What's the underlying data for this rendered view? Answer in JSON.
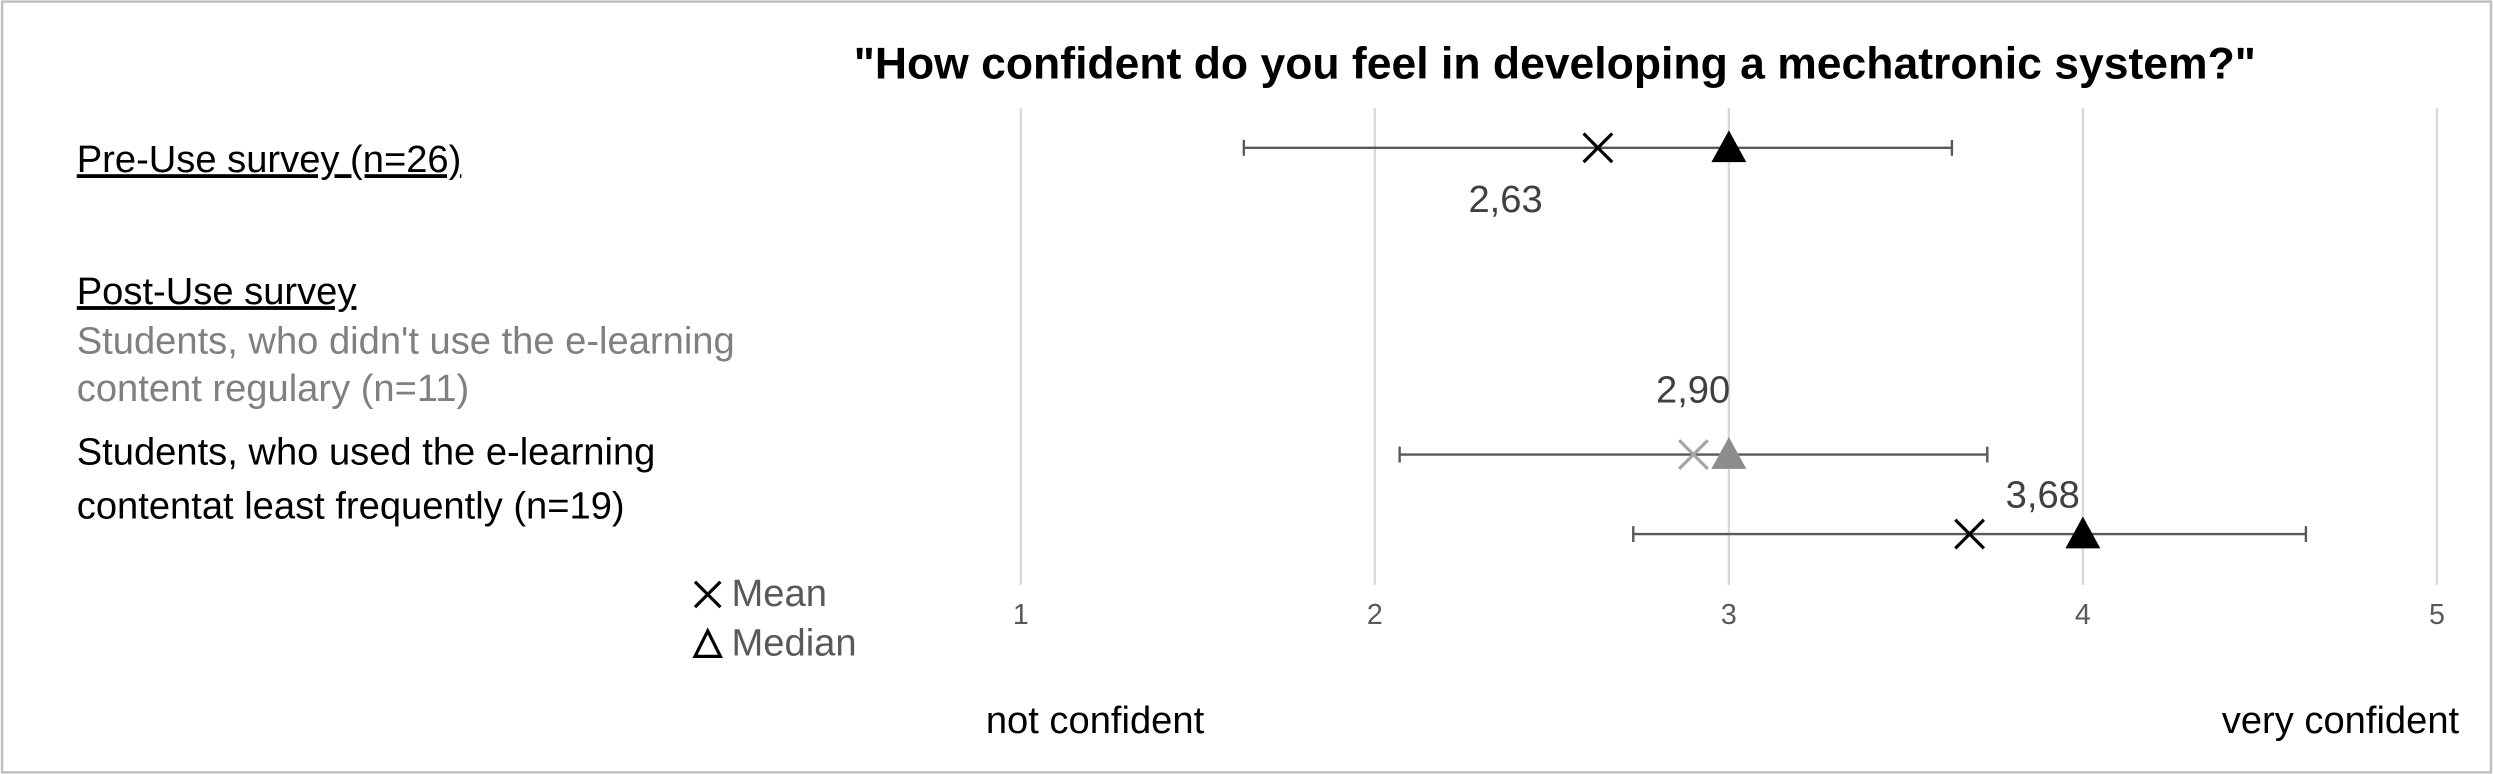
{
  "chart_data": {
    "type": "errorbar",
    "title": "\"How confident do you feel in developing a mechatronic system?\"",
    "xlim": [
      1,
      5
    ],
    "xticks": [
      1,
      2,
      3,
      4,
      5
    ],
    "grid": true,
    "x_label_low": "not confident",
    "x_label_high": "very confident",
    "group_header": "Post-Use survey",
    "legend": {
      "mean": "Mean",
      "median": "Median"
    },
    "series": [
      {
        "name": [
          "Pre-Use survey (n=26)"
        ],
        "color": "#000000",
        "median_color": "#000000",
        "mean": 2.63,
        "mean_label": "2,63",
        "median": 3,
        "error": 1.0
      },
      {
        "name": [
          "Students, who didn't use the e-learning",
          "content regulary (n=11)"
        ],
        "color": "#a6a6a6",
        "median_color": "#8c8c8c",
        "mean": 2.9,
        "mean_label": "2,90",
        "median": 3,
        "error": 0.83
      },
      {
        "name": [
          "Students, who used the e-learning",
          "contentat least frequently (n=19)"
        ],
        "color": "#000000",
        "median_color": "#000000",
        "mean": 3.68,
        "mean_label": "3,68",
        "median": 4,
        "error": 0.95
      }
    ]
  }
}
